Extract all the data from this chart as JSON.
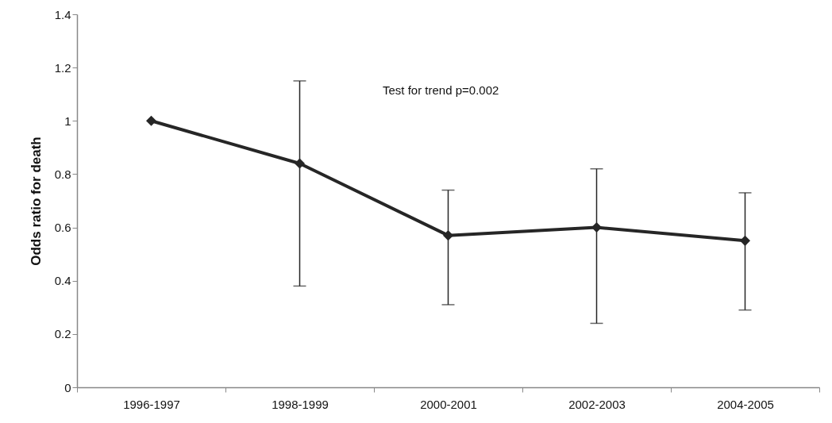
{
  "chart_data": {
    "type": "line",
    "ylabel": "Odds ratio for death",
    "categories": [
      "1996-1997",
      "1998-1999",
      "2000-2001",
      "2002-2003",
      "2004-2005"
    ],
    "series": [
      {
        "color": "#262626",
        "values": [
          1,
          0.84,
          0.57,
          0.6,
          0.55
        ],
        "errors": [
          null,
          [
            0.38,
            1.15
          ],
          [
            0.31,
            0.74
          ],
          [
            0.24,
            0.82
          ],
          [
            0.29,
            0.73
          ]
        ]
      }
    ],
    "ylim": [
      0,
      1.4
    ],
    "yticks": [
      0,
      0.2,
      0.4,
      0.6,
      0.8,
      1,
      1.2,
      1.4
    ],
    "annotations": [
      "Test for trend p=0.002"
    ],
    "marker": "diamond",
    "line_style": "solid",
    "grid": false
  }
}
